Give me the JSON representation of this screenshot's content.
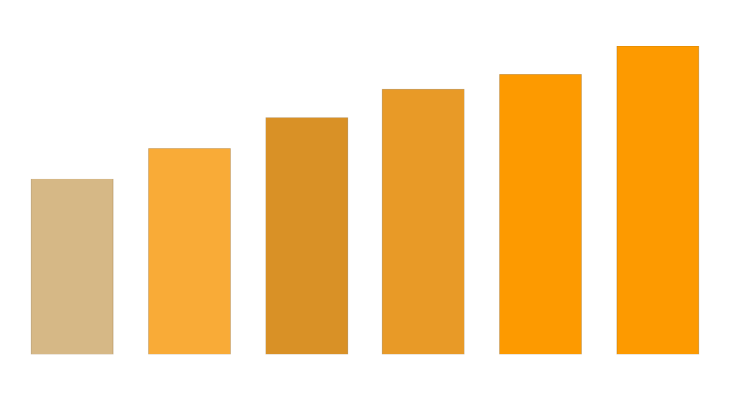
{
  "chart_data": {
    "type": "bar",
    "values": [
      57,
      67,
      77,
      86,
      91,
      100
    ],
    "colors": [
      "#d6b886",
      "#f9ab37",
      "#d99126",
      "#e89a27",
      "#fd9a00",
      "#fd9a00"
    ],
    "ylim": [
      0,
      100
    ]
  }
}
